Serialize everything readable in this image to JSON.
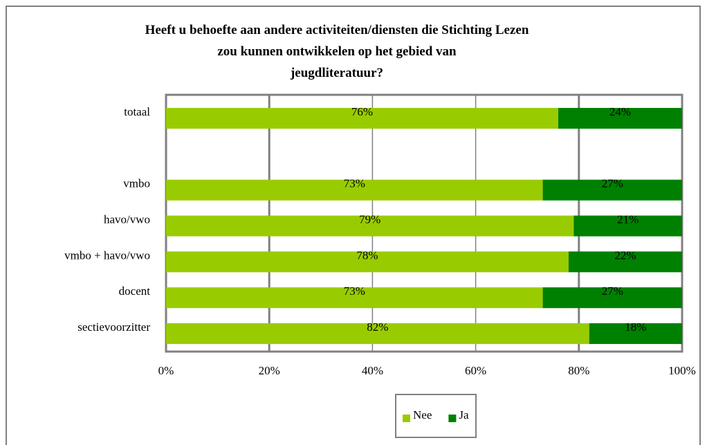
{
  "chart_data": {
    "type": "stacked_barh",
    "title": "Heeft u behoefte aan andere activiteiten/diensten die Stichting Lezen zou kunnen ontwikkelen op het gebied van jeugdliteratuur?",
    "categories": [
      "totaal",
      null,
      "vmbo",
      "havo/vwo",
      "vmbo + havo/vwo",
      "docent",
      "sectievoorzitter"
    ],
    "series": [
      {
        "name": "Nee",
        "color": "#99cc00",
        "values": [
          76,
          null,
          73,
          79,
          78,
          73,
          82
        ],
        "value_labels": [
          "76%",
          null,
          "73%",
          "79%",
          "78%",
          "73%",
          "82%"
        ]
      },
      {
        "name": "Ja",
        "color": "#008000",
        "values": [
          24,
          null,
          27,
          21,
          22,
          27,
          18
        ],
        "value_labels": [
          "24%",
          null,
          "27%",
          "21%",
          "22%",
          "27%",
          "18%"
        ]
      }
    ],
    "xlim": [
      0,
      100
    ],
    "xticks": [
      {
        "value": 0,
        "label": "0%"
      },
      {
        "value": 20,
        "label": "20%"
      },
      {
        "value": 40,
        "label": "40%"
      },
      {
        "value": 60,
        "label": "60%"
      },
      {
        "value": 80,
        "label": "80%"
      },
      {
        "value": 100,
        "label": "100%"
      }
    ],
    "grid": true,
    "legend": "bottom"
  }
}
